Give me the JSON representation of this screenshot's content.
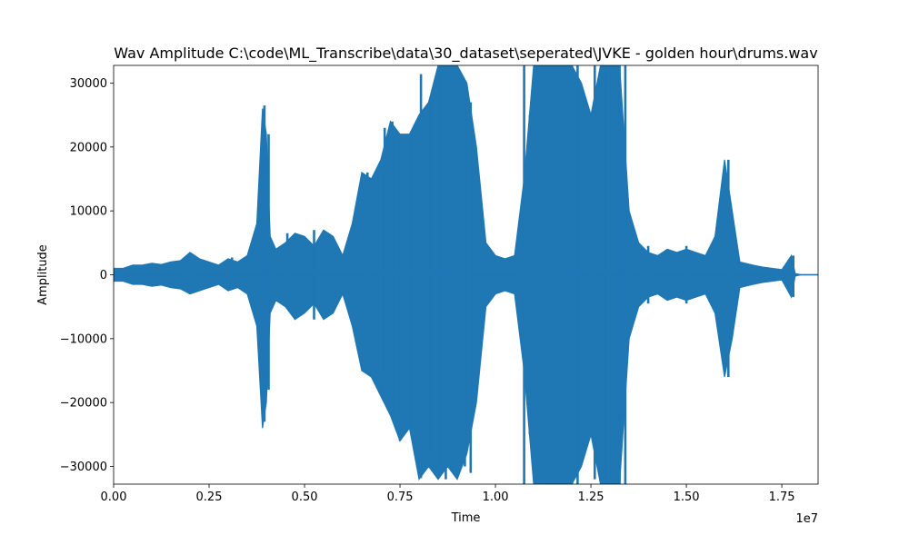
{
  "chart_data": {
    "type": "line",
    "title": "Wav Amplitude C:\\code\\ML_Transcribe\\data\\30_dataset\\seperated\\JVKE - golden hour\\drums.wav",
    "xlabel": "Time",
    "ylabel": "Amplitude",
    "x_offset_label": "1e7",
    "xlim": [
      0,
      18450000
    ],
    "ylim": [
      -32768,
      32767
    ],
    "grid": false,
    "x_ticks": [
      0,
      2500000,
      5000000,
      7500000,
      10000000,
      12500000,
      15000000,
      17500000
    ],
    "x_tick_labels": [
      "0.00",
      "0.25",
      "0.50",
      "0.75",
      "1.00",
      "1.25",
      "1.50",
      "1.75"
    ],
    "y_ticks": [
      -30000,
      -20000,
      -10000,
      0,
      10000,
      20000,
      30000
    ],
    "y_tick_labels": [
      "−30000",
      "−20000",
      "−10000",
      "0",
      "10000",
      "20000",
      "30000"
    ],
    "series": [
      {
        "color": "#1f77b4",
        "envelope": {
          "x": [
            0,
            250000,
            500000,
            750000,
            1000000,
            1250000,
            1500000,
            1750000,
            2000000,
            2250000,
            2500000,
            2750000,
            3000000,
            3250000,
            3500000,
            3750000,
            3900000,
            4000000,
            4100000,
            4250000,
            4500000,
            4750000,
            5000000,
            5250000,
            5500000,
            5750000,
            6000000,
            6250000,
            6500000,
            6750000,
            7000000,
            7250000,
            7500000,
            7750000,
            8000000,
            8250000,
            8500000,
            8750000,
            9000000,
            9250000,
            9500000,
            9750000,
            10000000,
            10250000,
            10500000,
            10750000,
            11000000,
            11250000,
            11500000,
            11750000,
            12000000,
            12250000,
            12500000,
            12750000,
            13000000,
            13250000,
            13500000,
            13750000,
            14000000,
            14250000,
            14500000,
            14750000,
            15000000,
            15250000,
            15500000,
            15750000,
            16000000,
            16200000,
            16400000,
            16750000,
            17000000,
            17250000,
            17500000,
            17750000,
            17850000,
            18000000,
            18450000
          ],
          "upper": [
            1000,
            1000,
            1500,
            1500,
            1800,
            1600,
            2000,
            2200,
            3500,
            2500,
            2000,
            1500,
            2500,
            2000,
            3000,
            8000,
            26000,
            22000,
            6000,
            4000,
            5000,
            6500,
            6000,
            4500,
            7000,
            6000,
            3000,
            8000,
            16000,
            15000,
            18000,
            24000,
            22000,
            22000,
            25000,
            27000,
            32767,
            32767,
            32767,
            30000,
            20000,
            5000,
            3000,
            2500,
            3000,
            15000,
            32767,
            32767,
            32767,
            32767,
            32767,
            30000,
            25000,
            32767,
            32767,
            32767,
            10000,
            5000,
            3500,
            3000,
            4000,
            3500,
            4000,
            3500,
            3000,
            6000,
            18000,
            10000,
            2000,
            1500,
            1200,
            1000,
            800,
            3000,
            200,
            0,
            0
          ],
          "lower": [
            -1000,
            -1000,
            -1500,
            -1500,
            -1800,
            -1600,
            -2000,
            -2200,
            -3000,
            -2500,
            -2000,
            -1500,
            -2500,
            -2000,
            -3000,
            -8000,
            -24000,
            -20000,
            -6000,
            -4000,
            -5000,
            -7000,
            -6000,
            -4500,
            -7000,
            -6000,
            -3000,
            -8000,
            -15000,
            -16000,
            -19000,
            -22000,
            -26000,
            -24000,
            -32000,
            -30000,
            -32000,
            -30000,
            -32000,
            -28000,
            -20000,
            -5000,
            -3000,
            -2500,
            -3000,
            -15000,
            -32767,
            -32767,
            -32767,
            -32767,
            -32767,
            -30000,
            -25000,
            -32767,
            -32767,
            -32767,
            -10000,
            -5000,
            -3500,
            -3000,
            -4000,
            -3500,
            -4000,
            -3500,
            -3000,
            -6000,
            -16000,
            -10000,
            -2000,
            -1500,
            -1200,
            -1000,
            -800,
            -3500,
            -200,
            0,
            0
          ]
        },
        "spikes": [
          {
            "x": 2000000,
            "min": -1500,
            "max": 3200
          },
          {
            "x": 3100000,
            "min": -2000,
            "max": 2700
          },
          {
            "x": 3950000,
            "min": -23000,
            "max": 26500
          },
          {
            "x": 4060000,
            "min": -18000,
            "max": 22000
          },
          {
            "x": 4550000,
            "min": -5000,
            "max": 6500
          },
          {
            "x": 5250000,
            "min": -7000,
            "max": 7000
          },
          {
            "x": 6650000,
            "min": -8000,
            "max": 16000
          },
          {
            "x": 6900000,
            "min": -16000,
            "max": 16000
          },
          {
            "x": 7100000,
            "min": -19000,
            "max": 23000
          },
          {
            "x": 7300000,
            "min": -22000,
            "max": 24000
          },
          {
            "x": 7500000,
            "min": -26000,
            "max": 22000
          },
          {
            "x": 7800000,
            "min": -24000,
            "max": 22000
          },
          {
            "x": 8050000,
            "min": -31800,
            "max": 31400
          },
          {
            "x": 8300000,
            "min": -28000,
            "max": 27000
          },
          {
            "x": 8560000,
            "min": -30000,
            "max": 32767
          },
          {
            "x": 8700000,
            "min": -32000,
            "max": 32767
          },
          {
            "x": 8950000,
            "min": -28000,
            "max": 31000
          },
          {
            "x": 9200000,
            "min": -30000,
            "max": 28000
          },
          {
            "x": 9350000,
            "min": -31000,
            "max": 27000
          },
          {
            "x": 10750000,
            "min": -32767,
            "max": 32767
          },
          {
            "x": 10900000,
            "min": -25000,
            "max": 25000
          },
          {
            "x": 11250000,
            "min": -32767,
            "max": 32767
          },
          {
            "x": 11500000,
            "min": -31000,
            "max": 32767
          },
          {
            "x": 11750000,
            "min": -32000,
            "max": 32767
          },
          {
            "x": 12000000,
            "min": -32767,
            "max": 32767
          },
          {
            "x": 12150000,
            "min": -32767,
            "max": 32767
          },
          {
            "x": 12600000,
            "min": -32000,
            "max": 32767
          },
          {
            "x": 12850000,
            "min": -32767,
            "max": 32767
          },
          {
            "x": 13050000,
            "min": -32767,
            "max": 32767
          },
          {
            "x": 13250000,
            "min": -32767,
            "max": 32767
          },
          {
            "x": 13400000,
            "min": -32767,
            "max": 32767
          },
          {
            "x": 14000000,
            "min": -4500,
            "max": 4500
          },
          {
            "x": 15000000,
            "min": -4500,
            "max": 4500
          },
          {
            "x": 16100000,
            "min": -16000,
            "max": 18000
          },
          {
            "x": 17800000,
            "min": -3500,
            "max": 3000
          }
        ]
      }
    ]
  }
}
